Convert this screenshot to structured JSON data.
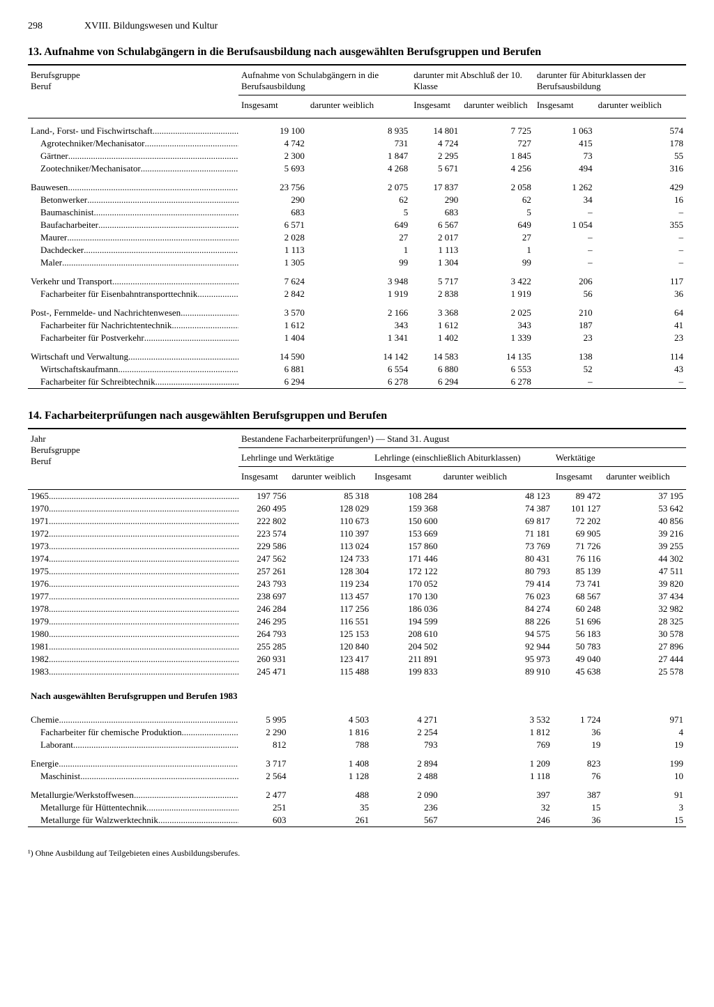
{
  "page": {
    "number": "298",
    "chapter": "XVIII. Bildungswesen und Kultur"
  },
  "table13": {
    "title": "13. Aufnahme von Schulabgängern in die Berufsausbildung nach ausgewählten Berufsgruppen und Berufen",
    "row_header": "Berufsgruppe\nBeruf",
    "col_groups": [
      "Aufnahme von Schul­abgängern in die Berufsausbildung",
      "darunter mit Abschluß der 10. Klasse",
      "darunter für Abiturklassen der Berufsausbildung"
    ],
    "sub_cols": [
      "Insgesamt",
      "darunter weiblich"
    ],
    "rows": [
      {
        "l": "Land-, Forst- und Fischwirtschaft",
        "g": 1,
        "v": [
          "19 100",
          "8 935",
          "14 801",
          "7 725",
          "1 063",
          "574"
        ]
      },
      {
        "l": "Agrotechniker/Mechanisator",
        "i": 1,
        "v": [
          "4 742",
          "731",
          "4 724",
          "727",
          "415",
          "178"
        ]
      },
      {
        "l": "Gärtner",
        "i": 1,
        "v": [
          "2 300",
          "1 847",
          "2 295",
          "1 845",
          "73",
          "55"
        ]
      },
      {
        "l": "Zootechniker/Mechanisator",
        "i": 1,
        "v": [
          "5 693",
          "4 268",
          "5 671",
          "4 256",
          "494",
          "316"
        ]
      },
      {
        "l": "Bauwesen",
        "g": 1,
        "v": [
          "23 756",
          "2 075",
          "17 837",
          "2 058",
          "1 262",
          "429"
        ]
      },
      {
        "l": "Betonwerker",
        "i": 1,
        "v": [
          "290",
          "62",
          "290",
          "62",
          "34",
          "16"
        ]
      },
      {
        "l": "Baumaschinist",
        "i": 1,
        "v": [
          "683",
          "5",
          "683",
          "5",
          "–",
          "–"
        ]
      },
      {
        "l": "Baufacharbeiter",
        "i": 1,
        "v": [
          "6 571",
          "649",
          "6 567",
          "649",
          "1 054",
          "355"
        ]
      },
      {
        "l": "Maurer",
        "i": 1,
        "v": [
          "2 028",
          "27",
          "2 017",
          "27",
          "–",
          "–"
        ]
      },
      {
        "l": "Dachdecker",
        "i": 1,
        "v": [
          "1 113",
          "1",
          "1 113",
          "1",
          "–",
          "–"
        ]
      },
      {
        "l": "Maler",
        "i": 1,
        "v": [
          "1 305",
          "99",
          "1 304",
          "99",
          "–",
          "–"
        ]
      },
      {
        "l": "Verkehr und Transport",
        "g": 1,
        "v": [
          "7 624",
          "3 948",
          "5 717",
          "3 422",
          "206",
          "117"
        ]
      },
      {
        "l": "Facharbeiter für Eisenbahntransport­technik",
        "i": 1,
        "v": [
          "2 842",
          "1 919",
          "2 838",
          "1 919",
          "56",
          "36"
        ]
      },
      {
        "l": "Post-, Fernmelde- und Nachrichtenwesen",
        "g": 1,
        "v": [
          "3 570",
          "2 166",
          "3 368",
          "2 025",
          "210",
          "64"
        ]
      },
      {
        "l": "Facharbeiter für Nachrichtentechnik",
        "i": 1,
        "v": [
          "1 612",
          "343",
          "1 612",
          "343",
          "187",
          "41"
        ]
      },
      {
        "l": "Facharbeiter für Postverkehr",
        "i": 1,
        "v": [
          "1 404",
          "1 341",
          "1 402",
          "1 339",
          "23",
          "23"
        ]
      },
      {
        "l": "Wirtschaft und Verwaltung",
        "g": 1,
        "v": [
          "14 590",
          "14 142",
          "14 583",
          "14 135",
          "138",
          "114"
        ]
      },
      {
        "l": "Wirtschaftskaufmann",
        "i": 1,
        "v": [
          "6 881",
          "6 554",
          "6 880",
          "6 553",
          "52",
          "43"
        ]
      },
      {
        "l": "Facharbeiter für Schreibtechnik",
        "i": 1,
        "v": [
          "6 294",
          "6 278",
          "6 294",
          "6 278",
          "–",
          "–"
        ]
      }
    ]
  },
  "table14": {
    "title": "14. Facharbeiterprüfungen nach ausgewählten Berufsgruppen und Berufen",
    "row_header": "Jahr\nBerufsgruppe\nBeruf",
    "span_header": "Bestandene Facharbeiterprüfungen¹) — Stand 31. August",
    "col_groups": [
      "Lehrlinge und Werktätige",
      "Lehrlinge (einschließlich Abiturklassen)",
      "Werktätige"
    ],
    "sub_cols": [
      "Insgesamt",
      "darunter weiblich"
    ],
    "rows_years": [
      {
        "l": "1965",
        "v": [
          "197 756",
          "85 318",
          "108 284",
          "48 123",
          "89 472",
          "37 195"
        ]
      },
      {
        "l": "1970",
        "v": [
          "260 495",
          "128 029",
          "159 368",
          "74 387",
          "101 127",
          "53 642"
        ]
      },
      {
        "l": "1971",
        "v": [
          "222 802",
          "110 673",
          "150 600",
          "69 817",
          "72 202",
          "40 856"
        ]
      },
      {
        "l": "1972",
        "v": [
          "223 574",
          "110 397",
          "153 669",
          "71 181",
          "69 905",
          "39 216"
        ]
      },
      {
        "l": "1973",
        "v": [
          "229 586",
          "113 024",
          "157 860",
          "73 769",
          "71 726",
          "39 255"
        ]
      },
      {
        "l": "1974",
        "v": [
          "247 562",
          "124 733",
          "171 446",
          "80 431",
          "76 116",
          "44 302"
        ]
      },
      {
        "l": "1975",
        "v": [
          "257 261",
          "128 304",
          "172 122",
          "80 793",
          "85 139",
          "47 511"
        ]
      },
      {
        "l": "1976",
        "v": [
          "243 793",
          "119 234",
          "170 052",
          "79 414",
          "73 741",
          "39 820"
        ]
      },
      {
        "l": "1977",
        "v": [
          "238 697",
          "113 457",
          "170 130",
          "76 023",
          "68 567",
          "37 434"
        ]
      },
      {
        "l": "1978",
        "v": [
          "246 284",
          "117 256",
          "186 036",
          "84 274",
          "60 248",
          "32 982"
        ]
      },
      {
        "l": "1979",
        "v": [
          "246 295",
          "116 551",
          "194 599",
          "88 226",
          "51 696",
          "28 325"
        ]
      },
      {
        "l": "1980",
        "v": [
          "264 793",
          "125 153",
          "208 610",
          "94 575",
          "56 183",
          "30 578"
        ]
      },
      {
        "l": "1981",
        "v": [
          "255 285",
          "120 840",
          "204 502",
          "92 944",
          "50 783",
          "27 896"
        ]
      },
      {
        "l": "1982",
        "v": [
          "260 931",
          "123 417",
          "211 891",
          "95 973",
          "49 040",
          "27 444"
        ]
      },
      {
        "l": "1983",
        "v": [
          "245 471",
          "115 488",
          "199 833",
          "89 910",
          "45 638",
          "25 578"
        ]
      }
    ],
    "mid_caption": "Nach ausgewählten Berufsgruppen und Berufen 1983",
    "rows_berufe": [
      {
        "l": "Chemie",
        "g": 1,
        "v": [
          "5 995",
          "4 503",
          "4 271",
          "3 532",
          "1 724",
          "971"
        ]
      },
      {
        "l": "Facharbeiter für chemische Produktion",
        "i": 1,
        "v": [
          "2 290",
          "1 816",
          "2 254",
          "1 812",
          "36",
          "4"
        ]
      },
      {
        "l": "Laborant",
        "i": 1,
        "v": [
          "812",
          "788",
          "793",
          "769",
          "19",
          "19"
        ]
      },
      {
        "l": "Energie",
        "g": 1,
        "v": [
          "3 717",
          "1 408",
          "2 894",
          "1 209",
          "823",
          "199"
        ]
      },
      {
        "l": "Maschinist",
        "i": 1,
        "v": [
          "2 564",
          "1 128",
          "2 488",
          "1 118",
          "76",
          "10"
        ]
      },
      {
        "l": "Metallurgie/Werkstoffwesen",
        "g": 1,
        "v": [
          "2 477",
          "488",
          "2 090",
          "397",
          "387",
          "91"
        ]
      },
      {
        "l": "Metallurge für Hüttentechnik",
        "i": 1,
        "v": [
          "251",
          "35",
          "236",
          "32",
          "15",
          "3"
        ]
      },
      {
        "l": "Metallurge für Walzwerktechnik",
        "i": 1,
        "v": [
          "603",
          "261",
          "567",
          "246",
          "36",
          "15"
        ]
      }
    ],
    "footnote": "¹) Ohne Ausbildung auf Teilgebieten eines Ausbildungsberufes."
  },
  "style": {
    "font_family": "Times New Roman",
    "text_color": "#000000",
    "background_color": "#ffffff",
    "rule_colors": {
      "heavy": "#000000",
      "light": "#000000"
    },
    "body_fontsize_pt": 10,
    "title_fontsize_pt": 12
  }
}
